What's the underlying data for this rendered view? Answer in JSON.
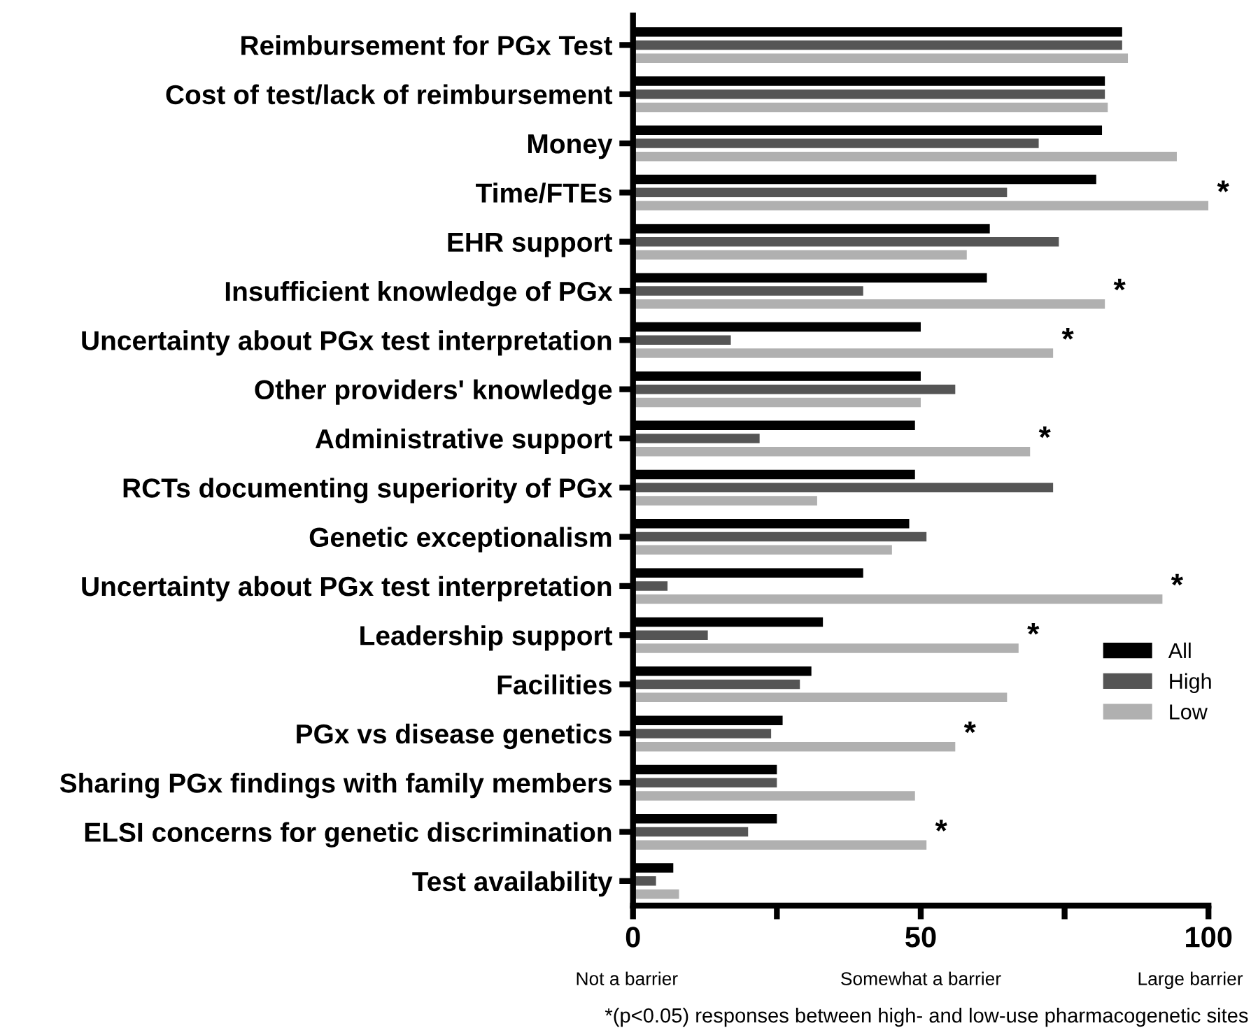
{
  "chart_data": {
    "type": "bar",
    "orientation": "horizontal",
    "categories": [
      "Reimbursement for PGx Test",
      "Cost of test/lack of reimbursement",
      "Money",
      "Time/FTEs",
      "EHR support",
      "Insufficient knowledge of PGx",
      "Uncertainty about PGx test interpretation",
      "Other providers' knowledge",
      "Administrative support",
      "RCTs documenting superiority of PGx",
      "Genetic exceptionalism",
      "Uncertainty about PGx test interpretation",
      "Leadership support",
      "Facilities",
      "PGx vs disease genetics",
      "Sharing PGx findings with family members",
      "ELSI concerns for genetic discrimination",
      "Test availability"
    ],
    "series": [
      {
        "name": "All",
        "color": "#000000",
        "values": [
          85,
          82,
          81.5,
          80.5,
          62,
          61.5,
          50,
          50,
          49,
          49,
          48,
          40,
          33,
          31,
          26,
          25,
          25,
          7
        ]
      },
      {
        "name": "High",
        "color": "#555555",
        "values": [
          85,
          82,
          70.5,
          65,
          74,
          40,
          17,
          56,
          22,
          73,
          51,
          6,
          13,
          29,
          24,
          25,
          20,
          4
        ]
      },
      {
        "name": "Low",
        "color": "#b0b0b0",
        "values": [
          86,
          82.5,
          94.5,
          100,
          58,
          82,
          73,
          50,
          69,
          32,
          45,
          92,
          67,
          65,
          56,
          49,
          51,
          8
        ],
        "value_labels": [
          null,
          null,
          null,
          "*",
          null,
          "*",
          "*",
          null,
          "*",
          null,
          null,
          "*",
          "*",
          null,
          "*",
          null,
          "*",
          null
        ]
      }
    ],
    "xlim": [
      0,
      100
    ],
    "xticks": [
      0,
      {
        "value": 25,
        "label": null
      },
      50,
      {
        "value": 75,
        "label": null
      },
      100
    ],
    "annotations": [
      "Not a barrier",
      "Somewhat a barrier",
      "Large barrier",
      "*(p<0.05) responses between high- and low-use pharmacogenetic sites"
    ],
    "legend": "right"
  }
}
